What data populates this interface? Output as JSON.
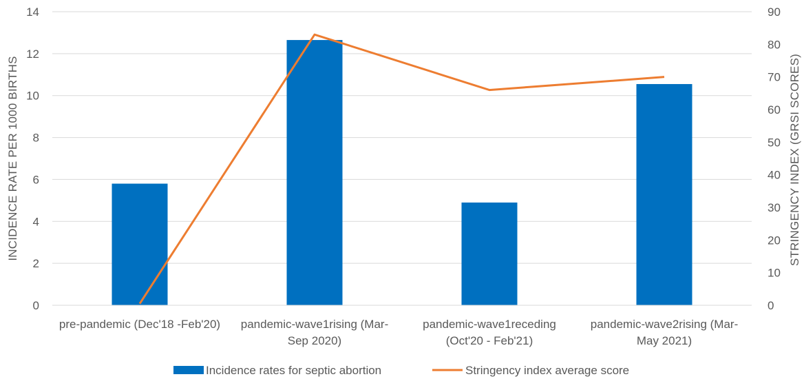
{
  "chart_data": {
    "type": "bar",
    "categories": [
      [
        "pre-pandemic (Dec'18 -Feb'20)"
      ],
      [
        "pandemic-wave1rising (Mar-",
        "Sep 2020)"
      ],
      [
        "pandemic-wave1receding",
        "(Oct'20 - Feb'21)"
      ],
      [
        "pandemic-wave2rising (Mar-",
        "May 2021)"
      ]
    ],
    "series": [
      {
        "name": "Incidence rates for septic abortion",
        "type": "bar",
        "axis": "left",
        "color": "#0070C0",
        "values": [
          5.8,
          12.65,
          4.9,
          10.55
        ]
      },
      {
        "name": "Stringency index average score",
        "type": "line",
        "axis": "right",
        "color": "#ED7D31",
        "values": [
          0.5,
          83,
          66,
          70
        ]
      }
    ],
    "ylabel": "INCIDENCE RATE  PER 1000 BIRTHS",
    "y2label": "STRINGENCY INDEX (GRSI SCORES)",
    "ylim": [
      0,
      14
    ],
    "y_ticks": [
      0,
      2,
      4,
      6,
      8,
      10,
      12,
      14
    ],
    "y2lim": [
      0,
      90
    ],
    "y2_ticks": [
      0,
      10,
      20,
      30,
      40,
      50,
      60,
      70,
      80,
      90
    ],
    "grid": true,
    "legend_position": "bottom"
  }
}
